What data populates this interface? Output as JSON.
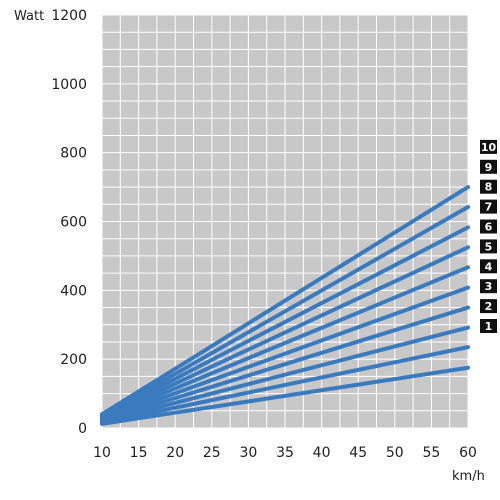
{
  "chart_data": {
    "type": "line",
    "ylabel": "Watt",
    "xlabel": "km/h",
    "xlim": [
      10,
      60
    ],
    "ylim": [
      0,
      1200
    ],
    "x_ticks": [
      10,
      15,
      20,
      25,
      30,
      35,
      40,
      45,
      50,
      55,
      60
    ],
    "y_ticks": [
      0,
      200,
      400,
      600,
      800,
      1000,
      1200
    ],
    "grid": true,
    "plot_background": "#c8c8c8",
    "grid_color": "#ffffff",
    "line_color": "#3a7bbf",
    "label_box_color": "#111111",
    "legend_placement": "right, at line ends",
    "series": [
      {
        "name": "1",
        "x": [
          10,
          60
        ],
        "y": [
          12,
          175
        ]
      },
      {
        "name": "2",
        "x": [
          10,
          60
        ],
        "y": [
          15,
          235
        ]
      },
      {
        "name": "3",
        "x": [
          10,
          60
        ],
        "y": [
          18,
          292
        ]
      },
      {
        "name": "4",
        "x": [
          10,
          60
        ],
        "y": [
          21,
          350
        ]
      },
      {
        "name": "5",
        "x": [
          10,
          60
        ],
        "y": [
          24,
          408
        ]
      },
      {
        "name": "6",
        "x": [
          10,
          60
        ],
        "y": [
          27,
          467
        ]
      },
      {
        "name": "7",
        "x": [
          10,
          60
        ],
        "y": [
          30,
          525
        ]
      },
      {
        "name": "8",
        "x": [
          10,
          60
        ],
        "y": [
          33,
          583
        ]
      },
      {
        "name": "9",
        "x": [
          10,
          60
        ],
        "y": [
          36,
          642
        ]
      },
      {
        "name": "10",
        "x": [
          10,
          60
        ],
        "y": [
          40,
          700
        ]
      }
    ]
  }
}
